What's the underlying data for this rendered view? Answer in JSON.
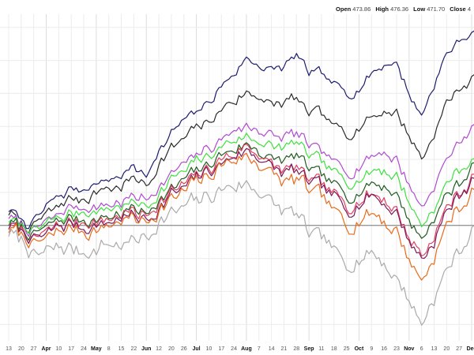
{
  "header": {
    "open_label": "Open",
    "open_value": "473.86",
    "high_label": "High",
    "high_value": "476.36",
    "low_label": "Low",
    "low_value": "471.70",
    "close_label": "Close",
    "close_value": "4"
  },
  "chart_data": {
    "type": "line",
    "title": "",
    "xlabel": "",
    "ylabel": "",
    "grid": true,
    "legend": "none",
    "x_tick_labels": [
      {
        "label": "13",
        "major": false
      },
      {
        "label": "20",
        "major": false
      },
      {
        "label": "27",
        "major": false
      },
      {
        "label": "Apr",
        "major": true
      },
      {
        "label": "10",
        "major": false
      },
      {
        "label": "17",
        "major": false
      },
      {
        "label": "24",
        "major": false
      },
      {
        "label": "May",
        "major": true
      },
      {
        "label": "8",
        "major": false
      },
      {
        "label": "15",
        "major": false
      },
      {
        "label": "22",
        "major": false
      },
      {
        "label": "Jun",
        "major": true
      },
      {
        "label": "12",
        "major": false
      },
      {
        "label": "20",
        "major": false
      },
      {
        "label": "26",
        "major": false
      },
      {
        "label": "Jul",
        "major": true
      },
      {
        "label": "10",
        "major": false
      },
      {
        "label": "17",
        "major": false
      },
      {
        "label": "24",
        "major": false
      },
      {
        "label": "Aug",
        "major": true
      },
      {
        "label": "7",
        "major": false
      },
      {
        "label": "14",
        "major": false
      },
      {
        "label": "21",
        "major": false
      },
      {
        "label": "28",
        "major": false
      },
      {
        "label": "Sep",
        "major": true
      },
      {
        "label": "11",
        "major": false
      },
      {
        "label": "18",
        "major": false
      },
      {
        "label": "25",
        "major": false
      },
      {
        "label": "Oct",
        "major": true
      },
      {
        "label": "9",
        "major": false
      },
      {
        "label": "16",
        "major": false
      },
      {
        "label": "23",
        "major": false
      },
      {
        "label": "Nov",
        "major": true
      },
      {
        "label": "6",
        "major": false
      },
      {
        "label": "13",
        "major": false
      },
      {
        "label": "20",
        "major": false
      },
      {
        "label": "27",
        "major": false
      },
      {
        "label": "Dec",
        "major": true
      }
    ],
    "baseline": 0,
    "anchors_x": [
      0,
      1.5,
      2,
      3,
      4,
      5,
      6,
      7,
      8,
      9,
      10,
      11,
      12,
      13,
      14,
      15,
      16,
      17,
      18,
      19,
      20,
      21,
      22,
      23,
      24,
      25,
      26,
      27,
      28,
      29,
      30,
      31,
      32,
      33,
      34,
      35,
      36,
      37,
      38
    ],
    "series": [
      {
        "color": "#1c1c6e",
        "values": [
          5,
          0,
          1,
          6,
          9,
          11,
          11,
          13,
          14,
          16,
          18,
          15,
          23,
          28,
          31,
          34,
          37,
          42,
          46,
          50,
          49,
          47,
          48,
          52,
          46,
          46,
          42,
          40,
          42,
          46,
          49,
          49,
          40,
          33,
          43,
          52,
          56,
          58,
          60
        ]
      },
      {
        "color": "#2a2a2a",
        "values": [
          4,
          -1,
          0,
          3,
          6,
          8,
          8,
          10,
          11,
          12,
          14,
          12,
          19,
          23,
          26,
          29,
          31,
          35,
          38,
          40,
          39,
          37,
          37,
          39,
          34,
          33,
          30,
          28,
          30,
          33,
          35,
          35,
          27,
          20,
          28,
          37,
          41,
          45,
          48
        ]
      },
      {
        "color": "#b04ad0",
        "values": [
          3,
          -1,
          -1,
          1,
          3,
          5,
          5,
          6,
          7,
          7,
          9,
          8,
          12,
          16,
          18,
          21,
          23,
          26,
          29,
          30,
          29,
          27,
          27,
          28,
          24,
          22,
          19,
          16,
          18,
          21,
          22,
          20,
          12,
          6,
          12,
          20,
          25,
          30,
          34
        ]
      },
      {
        "color": "#40e040",
        "values": [
          2,
          -1,
          -2,
          0,
          2,
          4,
          4,
          4,
          5,
          6,
          7,
          6,
          10,
          14,
          16,
          19,
          21,
          24,
          26,
          27,
          26,
          24,
          24,
          25,
          21,
          19,
          16,
          13,
          15,
          17,
          17,
          15,
          7,
          0,
          5,
          12,
          17,
          20,
          24
        ]
      },
      {
        "color": "#1e5a1e",
        "values": [
          1,
          -2,
          -3,
          -1,
          1,
          2,
          2,
          2,
          3,
          4,
          5,
          4,
          8,
          11,
          13,
          16,
          18,
          21,
          23,
          25,
          23,
          20,
          20,
          21,
          17,
          15,
          12,
          9,
          11,
          13,
          12,
          10,
          2,
          -4,
          2,
          9,
          13,
          17,
          21
        ]
      },
      {
        "color": "#e04060",
        "values": [
          0,
          -2,
          -4,
          -2,
          0,
          1,
          1,
          1,
          2,
          3,
          4,
          3,
          7,
          10,
          12,
          15,
          17,
          20,
          22,
          24,
          22,
          18,
          17,
          18,
          14,
          12,
          9,
          6,
          8,
          10,
          8,
          5,
          -3,
          -9,
          -3,
          5,
          10,
          14,
          18
        ]
      },
      {
        "color": "#7a1a5a",
        "values": [
          0,
          -3,
          -5,
          -3,
          -1,
          0,
          -1,
          0,
          1,
          2,
          3,
          2,
          6,
          9,
          11,
          14,
          16,
          19,
          21,
          23,
          21,
          17,
          16,
          17,
          13,
          11,
          8,
          5,
          7,
          9,
          7,
          4,
          -4,
          -10,
          -4,
          4,
          9,
          13,
          17
        ]
      },
      {
        "color": "#e86a1a",
        "values": [
          -1,
          -3,
          -6,
          -4,
          -2,
          -1,
          -2,
          -1,
          0,
          1,
          2,
          1,
          5,
          8,
          10,
          13,
          15,
          18,
          20,
          21,
          19,
          15,
          13,
          14,
          10,
          8,
          4,
          0,
          2,
          4,
          2,
          -2,
          -10,
          -17,
          -9,
          0,
          5,
          10,
          14
        ]
      },
      {
        "color": "#aaaaaa",
        "values": [
          -2,
          -6,
          -9,
          -8,
          -7,
          -7,
          -8,
          -7,
          -6,
          -6,
          -5,
          -4,
          2,
          4,
          5,
          7,
          9,
          11,
          12,
          13,
          11,
          7,
          4,
          3,
          -2,
          -4,
          -8,
          -12,
          -10,
          -8,
          -11,
          -16,
          -22,
          -30,
          -22,
          -14,
          -8,
          -2,
          3
        ]
      }
    ],
    "ylim": [
      -34,
      64
    ]
  }
}
